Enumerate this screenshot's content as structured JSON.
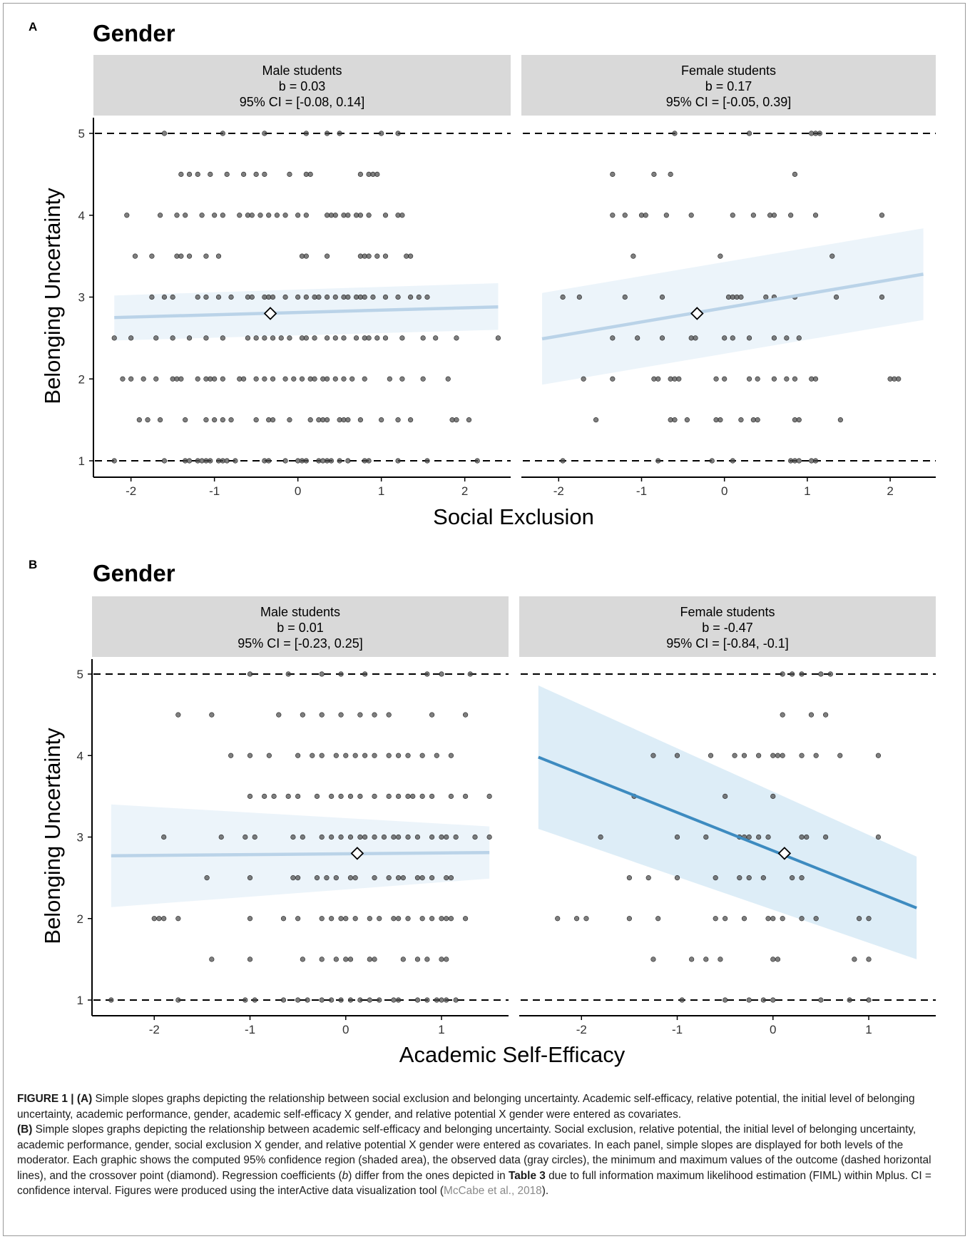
{
  "figure": {
    "panels": [
      {
        "letter": "A",
        "title": "Gender",
        "xlabel": "Social Exclusion",
        "ylabel": "Belonging Uncertainty",
        "facets": [
          {
            "header": [
              "Male students",
              "b = 0.03",
              "95% CI = [-0.08, 0.14]"
            ]
          },
          {
            "header": [
              "Female students",
              "b = 0.17",
              "95% CI = [-0.05, 0.39]"
            ]
          }
        ]
      },
      {
        "letter": "B",
        "title": "Gender",
        "xlabel": "Academic Self-Efficacy",
        "ylabel": "Belonging Uncertainty",
        "facets": [
          {
            "header": [
              "Male students",
              "b = 0.01",
              "95% CI = [-0.23, 0.25]"
            ]
          },
          {
            "header": [
              "Female students",
              "b = -0.47",
              "95% CI = [-0.84, -0.1]"
            ]
          }
        ]
      }
    ]
  },
  "caption": {
    "figure_label": "FIGURE 1 |",
    "a_label": "(A)",
    "a_text": "Simple slopes graphs depicting the relationship between social exclusion and belonging uncertainty. Academic self-efficacy, relative potential, the initial level of belonging uncertainty, academic performance, gender, academic self-efficacy X gender, and relative potential X gender were entered as covariates.",
    "b_label": "(B)",
    "b_text": "Simple slopes graphs depicting the relationship between academic self-efficacy and belonging uncertainty. Social exclusion, relative potential, the initial level of belonging uncertainty, academic performance, gender, social exclusion X gender, and relative potential X gender were entered as covariates. In each panel, simple slopes are displayed for both levels of the moderator. Each graphic shows the computed 95% confidence region (shaded area), the observed data (gray circles), the minimum and maximum values of the outcome (dashed horizontal lines), and the crossover point (diamond). Regression coefficients (",
    "b_italic": "b",
    "b_text2": ") differ from the ones depicted in",
    "table_ref": "Table 3",
    "b_text3": "due to full information maximum likelihood estimation (FIML) within Mplus. CI = confidence interval. Figures were produced using the interActive data visualization tool (",
    "citation": "McCabe et al., 2018",
    "b_text4": ")."
  },
  "colors": {
    "strip_bg": "#d9d9d9",
    "line_light": "#bad3e8",
    "line_dark": "#3d8bc0",
    "band": "#eaf3fa",
    "band_dark": "#d9ebf6",
    "point": "#4d4d4d"
  },
  "chart_data": [
    {
      "type": "scatter",
      "panel": "A",
      "facet": "Male students",
      "x_ticks": [
        -2,
        -1,
        0,
        1,
        2
      ],
      "y_ticks": [
        1,
        2,
        3,
        4,
        5
      ],
      "xlim": [
        -2.45,
        2.55
      ],
      "ylim": [
        0.8,
        5.2
      ],
      "reference_lines": [
        1,
        5
      ],
      "fit_line": {
        "x": [
          -2.2,
          2.4
        ],
        "y": [
          2.75,
          2.88
        ]
      },
      "ci_band": {
        "x": [
          -2.2,
          2.4
        ],
        "lower": [
          2.47,
          2.6
        ],
        "upper": [
          3.02,
          3.17
        ]
      },
      "crossover": {
        "x": -0.33,
        "y": 2.8
      },
      "points": {
        "1": [
          -2.2,
          -1.6,
          -1.35,
          -1.3,
          -1.2,
          -1.15,
          -1.1,
          -1.05,
          -0.95,
          -0.9,
          -0.85,
          -0.75,
          -0.4,
          -0.35,
          -0.15,
          0.0,
          0.05,
          0.1,
          0.25,
          0.3,
          0.35,
          0.4,
          0.5,
          0.6,
          0.8,
          0.85,
          1.2,
          1.55,
          2.15
        ],
        "1.5": [
          -1.9,
          -1.8,
          -1.65,
          -1.35,
          -1.1,
          -1.0,
          -0.9,
          -0.8,
          -0.5,
          -0.35,
          -0.3,
          -0.1,
          0.15,
          0.25,
          0.3,
          0.35,
          0.5,
          0.55,
          0.6,
          0.75,
          1.0,
          1.2,
          1.35,
          1.85,
          1.9,
          2.05
        ],
        "2": [
          -2.1,
          -2.0,
          -1.85,
          -1.7,
          -1.5,
          -1.45,
          -1.4,
          -1.2,
          -1.1,
          -1.05,
          -1.0,
          -0.9,
          -0.7,
          -0.65,
          -0.5,
          -0.4,
          -0.3,
          -0.15,
          -0.05,
          0.05,
          0.15,
          0.2,
          0.3,
          0.35,
          0.45,
          0.55,
          0.65,
          0.8,
          1.1,
          1.25,
          1.5,
          1.8
        ],
        "2.5": [
          -2.2,
          -2.0,
          -1.7,
          -1.5,
          -1.3,
          -1.1,
          -0.9,
          -0.6,
          -0.5,
          -0.4,
          -0.3,
          -0.2,
          -0.1,
          0.05,
          0.1,
          0.2,
          0.35,
          0.45,
          0.55,
          0.7,
          0.8,
          0.85,
          0.95,
          1.05,
          1.25,
          1.5,
          1.65,
          1.9,
          2.4
        ],
        "3": [
          -1.75,
          -1.6,
          -1.5,
          -1.2,
          -1.1,
          -0.95,
          -0.8,
          -0.6,
          -0.55,
          -0.4,
          -0.35,
          -0.3,
          -0.15,
          0.0,
          0.1,
          0.2,
          0.25,
          0.35,
          0.45,
          0.55,
          0.6,
          0.7,
          0.75,
          0.8,
          0.9,
          1.05,
          1.2,
          1.35,
          1.45,
          1.55
        ],
        "3.5": [
          -1.95,
          -1.75,
          -1.45,
          -1.4,
          -1.3,
          -1.1,
          -0.95,
          0.05,
          0.1,
          0.35,
          0.75,
          0.8,
          0.85,
          0.95,
          1.05,
          1.3,
          1.35
        ],
        "4": [
          -2.05,
          -1.65,
          -1.45,
          -1.35,
          -1.15,
          -1.0,
          -0.9,
          -0.7,
          -0.6,
          -0.55,
          -0.45,
          -0.35,
          -0.25,
          -0.15,
          0.0,
          0.1,
          0.35,
          0.4,
          0.45,
          0.55,
          0.6,
          0.7,
          0.75,
          0.85,
          1.05,
          1.2,
          1.25
        ],
        "4.5": [
          -1.4,
          -1.3,
          -1.2,
          -1.05,
          -0.85,
          -0.65,
          -0.5,
          -0.4,
          -0.1,
          0.1,
          0.15,
          0.75,
          0.85,
          0.9,
          0.95
        ],
        "5": [
          -1.6,
          -0.9,
          -0.4,
          0.1,
          0.35,
          0.5,
          1.0,
          1.2
        ]
      }
    },
    {
      "type": "scatter",
      "panel": "A",
      "facet": "Female students",
      "x_ticks": [
        -2,
        -1,
        0,
        1,
        2
      ],
      "y_ticks": [
        1,
        2,
        3,
        4,
        5
      ],
      "xlim": [
        -2.45,
        2.55
      ],
      "ylim": [
        0.8,
        5.2
      ],
      "reference_lines": [
        1,
        5
      ],
      "fit_line": {
        "x": [
          -2.2,
          2.4
        ],
        "y": [
          2.49,
          3.28
        ]
      },
      "ci_band": {
        "x": [
          -2.2,
          2.4
        ],
        "lower": [
          1.93,
          2.72
        ],
        "upper": [
          3.05,
          3.84
        ]
      },
      "crossover": {
        "x": -0.33,
        "y": 2.8
      },
      "points": {
        "1": [
          -1.95,
          -0.8,
          -0.15,
          0.1,
          0.8,
          0.85,
          0.9,
          1.05,
          1.1
        ],
        "1.5": [
          -1.55,
          -0.65,
          -0.6,
          -0.45,
          -0.1,
          -0.05,
          0.2,
          0.35,
          0.4,
          0.85,
          0.9,
          1.4
        ],
        "2": [
          -1.7,
          -1.35,
          -0.85,
          -0.8,
          -0.65,
          -0.6,
          -0.55,
          -0.1,
          0.0,
          0.3,
          0.4,
          0.6,
          0.75,
          0.85,
          1.05,
          1.1,
          2.0,
          2.05,
          2.1
        ],
        "2.5": [
          -1.35,
          -1.05,
          -0.75,
          -0.4,
          -0.35,
          0.0,
          0.1,
          0.3,
          0.6,
          0.75,
          0.9
        ],
        "3": [
          -1.95,
          -1.75,
          -1.2,
          -0.75,
          0.05,
          0.1,
          0.15,
          0.2,
          0.5,
          0.6,
          0.85,
          1.35,
          1.9
        ],
        "3.5": [
          -1.1,
          -0.05,
          1.3
        ],
        "4": [
          -1.35,
          -1.2,
          -1.0,
          -0.95,
          -0.7,
          -0.4,
          0.1,
          0.35,
          0.55,
          0.6,
          0.8,
          1.1,
          1.9
        ],
        "4.5": [
          -1.35,
          -0.85,
          -0.65,
          0.85
        ],
        "5": [
          -0.6,
          0.3,
          1.05,
          1.1,
          1.15
        ]
      }
    },
    {
      "type": "scatter",
      "panel": "B",
      "facet": "Male students",
      "x_ticks": [
        -2,
        -1,
        0,
        1
      ],
      "y_ticks": [
        1,
        2,
        3,
        4,
        5
      ],
      "xlim": [
        -2.65,
        1.7
      ],
      "ylim": [
        0.8,
        5.2
      ],
      "reference_lines": [
        1,
        5
      ],
      "fit_line": {
        "x": [
          -2.45,
          1.5
        ],
        "y": [
          2.77,
          2.81
        ]
      },
      "ci_band": {
        "x": [
          -2.45,
          1.5
        ],
        "lower": [
          2.14,
          2.49
        ],
        "upper": [
          3.4,
          3.13
        ]
      },
      "crossover": {
        "x": 0.12,
        "y": 2.8
      },
      "points": {
        "1": [
          -2.45,
          -1.75,
          -1.05,
          -0.95,
          -0.65,
          -0.5,
          -0.4,
          -0.25,
          -0.15,
          -0.05,
          0.05,
          0.15,
          0.25,
          0.35,
          0.5,
          0.55,
          0.75,
          0.85,
          0.95,
          1.0,
          1.05,
          1.15
        ],
        "1.5": [
          -1.4,
          -1.0,
          -0.45,
          -0.25,
          -0.1,
          0.0,
          0.05,
          0.25,
          0.3,
          0.6,
          0.75,
          0.85,
          1.0,
          1.05
        ],
        "2": [
          -2.0,
          -1.95,
          -1.9,
          -1.75,
          -1.0,
          -0.65,
          -0.5,
          -0.25,
          -0.15,
          -0.05,
          0.0,
          0.1,
          0.25,
          0.35,
          0.5,
          0.55,
          0.65,
          0.8,
          0.9,
          1.0,
          1.05,
          1.1,
          1.25
        ],
        "2.5": [
          -1.45,
          -1.0,
          -0.55,
          -0.5,
          -0.3,
          -0.2,
          -0.1,
          0.05,
          0.1,
          0.3,
          0.45,
          0.55,
          0.6,
          0.75,
          0.8,
          0.9,
          1.05,
          1.1
        ],
        "3": [
          -1.9,
          -1.3,
          -1.05,
          -0.95,
          -0.55,
          -0.45,
          -0.25,
          -0.15,
          -0.05,
          0.05,
          0.15,
          0.2,
          0.3,
          0.4,
          0.5,
          0.55,
          0.65,
          0.75,
          0.9,
          1.0,
          1.05,
          1.15,
          1.35,
          1.5
        ],
        "3.5": [
          -1.0,
          -0.85,
          -0.75,
          -0.6,
          -0.5,
          -0.3,
          -0.15,
          -0.05,
          0.05,
          0.15,
          0.3,
          0.45,
          0.55,
          0.65,
          0.7,
          0.8,
          0.9,
          1.1,
          1.25,
          1.5
        ],
        "4": [
          -1.2,
          -1.0,
          -0.8,
          -0.5,
          -0.35,
          -0.25,
          -0.1,
          0.0,
          0.1,
          0.2,
          0.3,
          0.45,
          0.55,
          0.65,
          0.8,
          0.95,
          1.1
        ],
        "4.5": [
          -1.75,
          -1.4,
          -0.7,
          -0.45,
          -0.25,
          -0.05,
          0.15,
          0.3,
          0.45,
          0.9,
          1.25
        ],
        "5": [
          -1.0,
          -0.6,
          -0.25,
          -0.05,
          0.2,
          0.85,
          1.0,
          1.3
        ]
      }
    },
    {
      "type": "scatter",
      "panel": "B",
      "facet": "Female students",
      "x_ticks": [
        -2,
        -1,
        0,
        1
      ],
      "y_ticks": [
        1,
        2,
        3,
        4,
        5
      ],
      "xlim": [
        -2.65,
        1.7
      ],
      "ylim": [
        0.8,
        5.2
      ],
      "reference_lines": [
        1,
        5
      ],
      "fit_line": {
        "x": [
          -2.45,
          1.5
        ],
        "y": [
          3.98,
          2.13
        ]
      },
      "ci_band": {
        "x": [
          -2.45,
          1.5
        ],
        "lower": [
          3.1,
          1.5
        ],
        "upper": [
          4.86,
          2.76
        ]
      },
      "crossover": {
        "x": 0.12,
        "y": 2.8
      },
      "points": {
        "1": [
          -0.95,
          -0.5,
          -0.25,
          -0.1,
          0.0,
          0.5,
          0.8,
          1.0
        ],
        "1.5": [
          -1.25,
          -0.85,
          -0.7,
          -0.55,
          0.0,
          0.05,
          0.85,
          1.0
        ],
        "2": [
          -2.25,
          -2.05,
          -1.95,
          -1.5,
          -1.2,
          -0.6,
          -0.5,
          -0.3,
          -0.05,
          0.0,
          0.1,
          0.3,
          0.45,
          0.9,
          1.0
        ],
        "2.5": [
          -1.5,
          -1.3,
          -1.0,
          -0.6,
          -0.35,
          -0.25,
          -0.1,
          0.2,
          0.3
        ],
        "3": [
          -1.8,
          -1.0,
          -0.7,
          -0.35,
          -0.3,
          -0.25,
          -0.15,
          -0.05,
          0.3,
          0.35,
          0.55,
          1.1
        ],
        "3.5": [
          -1.45,
          -0.5,
          0.0
        ],
        "4": [
          -1.25,
          -1.0,
          -0.65,
          -0.4,
          -0.3,
          -0.15,
          0.0,
          0.05,
          0.1,
          0.3,
          0.45,
          0.7,
          1.1
        ],
        "4.5": [
          0.1,
          0.4,
          0.55
        ],
        "5": [
          0.1,
          0.2,
          0.3,
          0.5,
          0.6
        ]
      }
    }
  ]
}
